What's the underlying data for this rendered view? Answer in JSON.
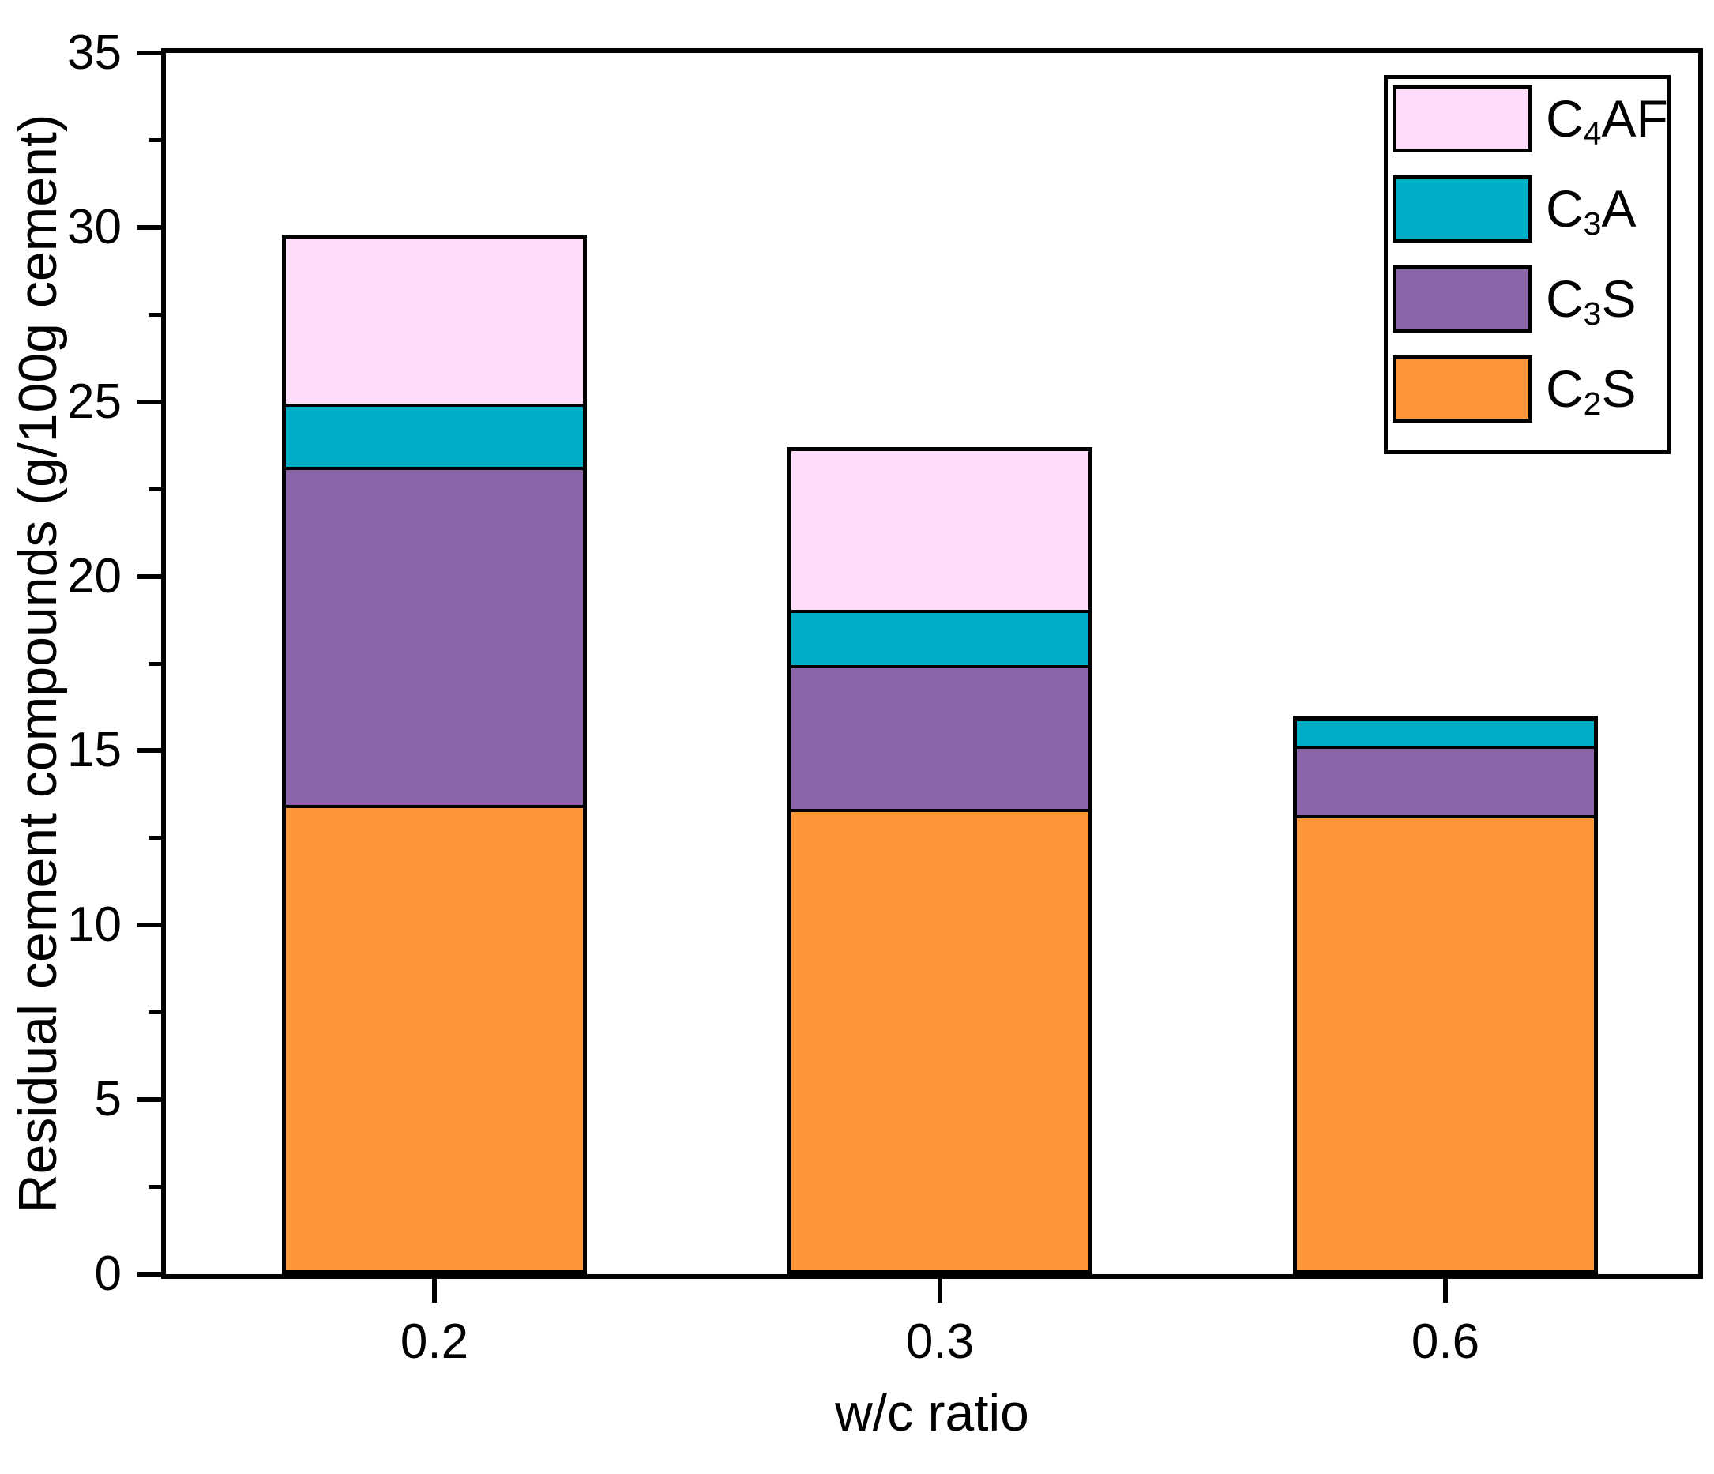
{
  "chart_data": {
    "type": "bar",
    "stacked": true,
    "title": "",
    "xlabel": "w/c ratio",
    "ylabel": "Residual cement compounds (g/100g cement)",
    "categories": [
      "0.2",
      "0.3",
      "0.6"
    ],
    "series": [
      {
        "name": "C2S",
        "label": {
          "pre": "C",
          "sub": "2",
          "post": "S"
        },
        "color": "#FC9638",
        "values": [
          13.4,
          13.3,
          13.1
        ]
      },
      {
        "name": "C3S",
        "label": {
          "pre": "C",
          "sub": "3",
          "post": "S"
        },
        "color": "#8A65A8",
        "values": [
          9.7,
          4.1,
          2.0
        ]
      },
      {
        "name": "C3A",
        "label": {
          "pre": "C",
          "sub": "3",
          "post": "A"
        },
        "color": "#00ADC6",
        "values": [
          1.8,
          1.6,
          0.8
        ]
      },
      {
        "name": "C4AF",
        "label": {
          "pre": "C",
          "sub": "4",
          "post": "AF"
        },
        "color": "#FEDCFA",
        "values": [
          4.9,
          4.7,
          0.1
        ]
      }
    ],
    "stack_totals": [
      29.8,
      23.7,
      16.0
    ],
    "ylim": [
      0,
      35
    ],
    "ytick_step": 5,
    "yminor_step": 2.5,
    "ytick_labels": [
      "0",
      "5",
      "10",
      "15",
      "20",
      "25",
      "30",
      "35"
    ],
    "legend_order": [
      "C4AF",
      "C3A",
      "C3S",
      "C2S"
    ],
    "legend_position": "top-right",
    "grid": false,
    "axis_color": "#000000",
    "text_color": "#000000",
    "background_color": "#FFFFFF"
  }
}
